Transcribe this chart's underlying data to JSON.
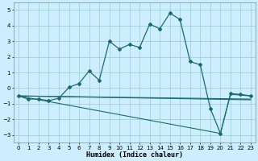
{
  "title": "",
  "xlabel": "Humidex (Indice chaleur)",
  "bg_color": "#cceeff",
  "line_color": "#1a6b6b",
  "grid_color": "#99cccc",
  "xlim": [
    -0.5,
    23.5
  ],
  "ylim": [
    -3.5,
    5.5
  ],
  "xticks": [
    0,
    1,
    2,
    3,
    4,
    5,
    6,
    7,
    8,
    9,
    10,
    11,
    12,
    13,
    14,
    15,
    16,
    17,
    18,
    19,
    20,
    21,
    22,
    23
  ],
  "yticks": [
    -3,
    -2,
    -1,
    0,
    1,
    2,
    3,
    4,
    5
  ],
  "main_x": [
    0,
    1,
    2,
    3,
    4,
    5,
    6,
    7,
    8,
    9,
    10,
    11,
    12,
    13,
    14,
    15,
    16,
    17,
    18,
    19,
    20,
    21,
    22,
    23
  ],
  "main_y": [
    -0.5,
    -0.7,
    -0.7,
    -0.8,
    -0.65,
    0.05,
    0.3,
    1.1,
    0.5,
    3.0,
    2.5,
    2.8,
    2.6,
    4.1,
    3.8,
    4.8,
    4.4,
    1.7,
    1.5,
    -1.3,
    -2.9,
    -0.35,
    -0.4,
    -0.5
  ],
  "line1_x": [
    0,
    23
  ],
  "line1_y": [
    -0.5,
    -0.7
  ],
  "line2_x": [
    0,
    23
  ],
  "line2_y": [
    -0.5,
    -0.75
  ],
  "line3_x": [
    0,
    20,
    21,
    23
  ],
  "line3_y": [
    -0.5,
    -2.9,
    -0.4,
    -0.5
  ],
  "tick_fontsize": 5.0,
  "xlabel_fontsize": 6.0
}
